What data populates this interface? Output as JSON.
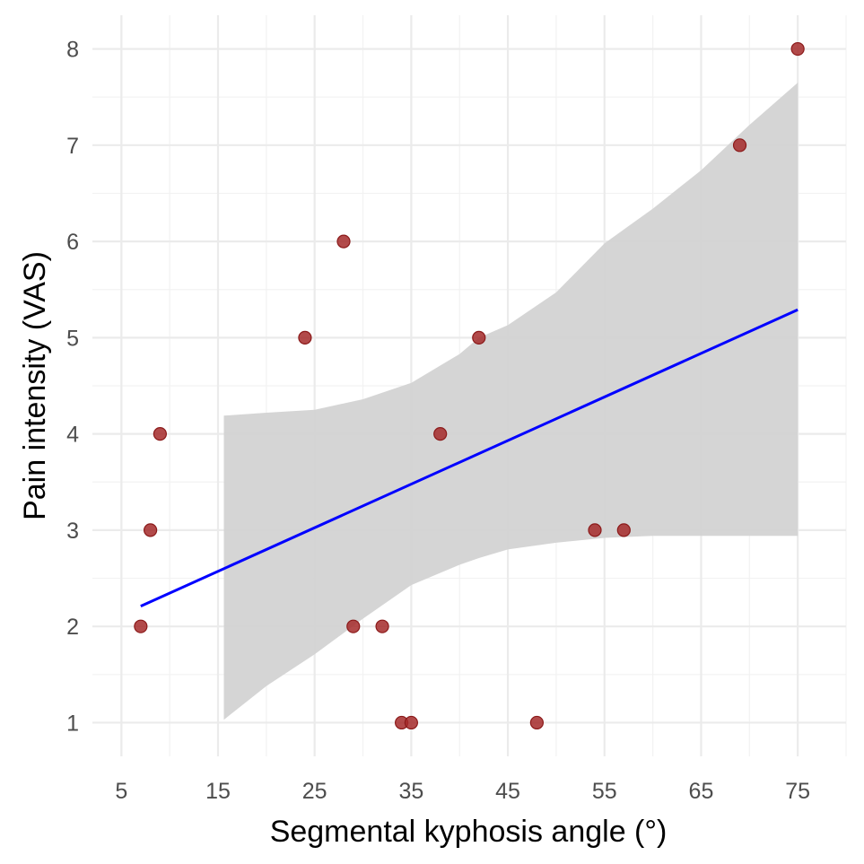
{
  "chart_data": {
    "type": "scatter",
    "title": "",
    "xlabel": "Segmental kyphosis angle (°)",
    "ylabel": "Pain intensity (VAS)",
    "xlim": [
      2,
      80
    ],
    "ylim": [
      0.65,
      8.35
    ],
    "x_ticks": [
      5,
      15,
      25,
      35,
      45,
      55,
      65,
      75
    ],
    "y_ticks": [
      1,
      2,
      3,
      4,
      5,
      6,
      7,
      8
    ],
    "grid": true,
    "legend": "none",
    "points": {
      "name": "observations",
      "color": "#a52a2a",
      "edge_color": "#8b1a1a",
      "x": [
        7,
        8,
        9,
        24,
        28,
        29,
        32,
        34,
        35,
        38,
        42,
        48,
        54,
        57,
        69,
        75
      ],
      "y": [
        2,
        3,
        4,
        5,
        6,
        2,
        2,
        1,
        1,
        4,
        5,
        1,
        3,
        3,
        7,
        8
      ]
    },
    "fit_line": {
      "name": "linear fit",
      "color": "#0000ff",
      "x": [
        7,
        75
      ],
      "y": [
        2.21,
        5.29
      ]
    },
    "confidence_band": {
      "name": "95% confidence interval",
      "color": "#d3d3d3",
      "x": [
        15.6,
        20,
        25,
        30,
        35,
        40,
        42,
        45,
        50,
        55,
        60,
        65,
        70,
        75
      ],
      "lower": [
        1.03,
        1.38,
        1.71,
        2.08,
        2.43,
        2.64,
        2.71,
        2.8,
        2.87,
        2.92,
        2.94,
        2.94,
        2.94,
        2.94
      ],
      "upper": [
        4.19,
        4.22,
        4.25,
        4.36,
        4.53,
        4.83,
        5.0,
        5.13,
        5.47,
        5.98,
        6.34,
        6.74,
        7.21,
        7.65
      ]
    }
  }
}
